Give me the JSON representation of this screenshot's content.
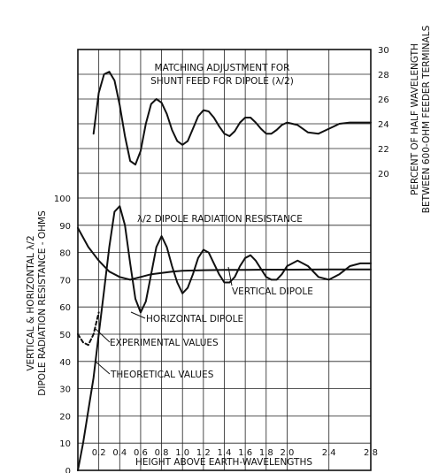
{
  "chart_data": {
    "type": "line",
    "xlabel": "HEIGHT ABOVE EARTH-WAVELENGTHS",
    "ylabel_left": [
      "VERTICAL & HORIZONTAL λ/2",
      "DIPOLE RADIATION RESISTANCE - OHMS"
    ],
    "ylabel_right": [
      "PERCENT OF HALF WAVELENGTH",
      "BETWEEN 600-OHM FEEDER TERMINALS"
    ],
    "xlim": [
      0,
      2.8
    ],
    "ylim_left": [
      0,
      100
    ],
    "ylim_right": [
      20,
      30
    ],
    "x_ticks": [
      "0.2",
      "0.4",
      "0.6",
      "0.8",
      "1.0",
      "1.2",
      "1.4",
      "1.6",
      "1.8",
      "2.0",
      "2.4",
      "2.8"
    ],
    "y_ticks_left": [
      "0",
      "10",
      "20",
      "30",
      "40",
      "50",
      "60",
      "70",
      "80",
      "90",
      "100"
    ],
    "y_ticks_right": [
      "20",
      "22",
      "24",
      "26",
      "28",
      "30"
    ],
    "grid": true,
    "annotations": {
      "matching": [
        "MATCHING ADJUSTMENT FOR",
        "SHUNT FEED FOR DIPOLE (λ/2)"
      ],
      "radiation": "λ/2 DIPOLE RADIATION RESISTANCE",
      "vertical": "VERTICAL DIPOLE",
      "horizontal": "HORIZONTAL DIPOLE",
      "experimental": "EXPERIMENTAL VALUES",
      "theoretical": "THEORETICAL VALUES"
    },
    "series": [
      {
        "name": "HORIZONTAL DIPOLE",
        "axis": "left",
        "style": "solid",
        "x": [
          0,
          0.05,
          0.1,
          0.15,
          0.2,
          0.25,
          0.3,
          0.35,
          0.4,
          0.45,
          0.5,
          0.55,
          0.6,
          0.65,
          0.7,
          0.75,
          0.8,
          0.85,
          0.9,
          0.95,
          1.0,
          1.05,
          1.1,
          1.15,
          1.2,
          1.25,
          1.3,
          1.35,
          1.4,
          1.45,
          1.5,
          1.55,
          1.6,
          1.65,
          1.7,
          1.75,
          1.8,
          1.85,
          1.9,
          1.95,
          2.0,
          2.1,
          2.2,
          2.3,
          2.4,
          2.5,
          2.6,
          2.7,
          2.8
        ],
        "values": [
          0,
          10,
          22,
          34,
          50,
          66,
          82,
          95,
          97,
          90,
          76,
          63,
          58,
          62,
          72,
          82,
          86,
          82,
          75,
          69,
          65,
          67,
          72,
          78,
          81,
          80,
          76,
          72,
          69,
          69,
          71,
          75,
          78,
          79,
          77,
          74,
          71,
          70,
          70,
          72,
          75,
          77,
          75,
          71,
          70,
          72,
          75,
          76,
          76
        ]
      },
      {
        "name": "VERTICAL DIPOLE",
        "axis": "left",
        "style": "solid",
        "x": [
          0,
          0.1,
          0.2,
          0.3,
          0.4,
          0.5,
          0.6,
          0.7,
          0.8,
          0.9,
          1.0,
          1.2,
          1.4,
          1.6,
          1.8,
          2.0,
          2.4,
          2.8
        ],
        "values": [
          89,
          82,
          77,
          73,
          71,
          70,
          71,
          72,
          72.5,
          73,
          73.3,
          73.5,
          73.6,
          73.6,
          73.7,
          73.7,
          73.8,
          73.8
        ]
      },
      {
        "name": "EXPERIMENTAL VALUES",
        "axis": "left",
        "style": "dashed",
        "x": [
          0,
          0.05,
          0.1,
          0.15,
          0.2
        ],
        "values": [
          50,
          47,
          46,
          50,
          58
        ]
      },
      {
        "name": "MATCHING ADJUSTMENT FOR SHUNT FEED FOR DIPOLE (λ/2)",
        "axis": "right",
        "style": "solid",
        "x": [
          0.15,
          0.2,
          0.25,
          0.3,
          0.35,
          0.4,
          0.45,
          0.5,
          0.55,
          0.6,
          0.65,
          0.7,
          0.75,
          0.8,
          0.85,
          0.9,
          0.95,
          1.0,
          1.05,
          1.1,
          1.15,
          1.2,
          1.25,
          1.3,
          1.35,
          1.4,
          1.45,
          1.5,
          1.55,
          1.6,
          1.65,
          1.7,
          1.75,
          1.8,
          1.85,
          1.9,
          1.95,
          2.0,
          2.1,
          2.2,
          2.3,
          2.4,
          2.5,
          2.6,
          2.7,
          2.8
        ],
        "values": [
          23.2,
          26.5,
          28,
          28.2,
          27.5,
          25.5,
          23,
          21,
          20.7,
          21.8,
          24,
          25.6,
          26,
          25.7,
          24.8,
          23.5,
          22.6,
          22.3,
          22.6,
          23.6,
          24.6,
          25.1,
          25,
          24.5,
          23.8,
          23.2,
          23,
          23.4,
          24.1,
          24.5,
          24.5,
          24.1,
          23.6,
          23.2,
          23.2,
          23.5,
          23.9,
          24.1,
          23.9,
          23.3,
          23.2,
          23.6,
          24,
          24.1,
          24.1,
          24.1
        ]
      }
    ]
  }
}
